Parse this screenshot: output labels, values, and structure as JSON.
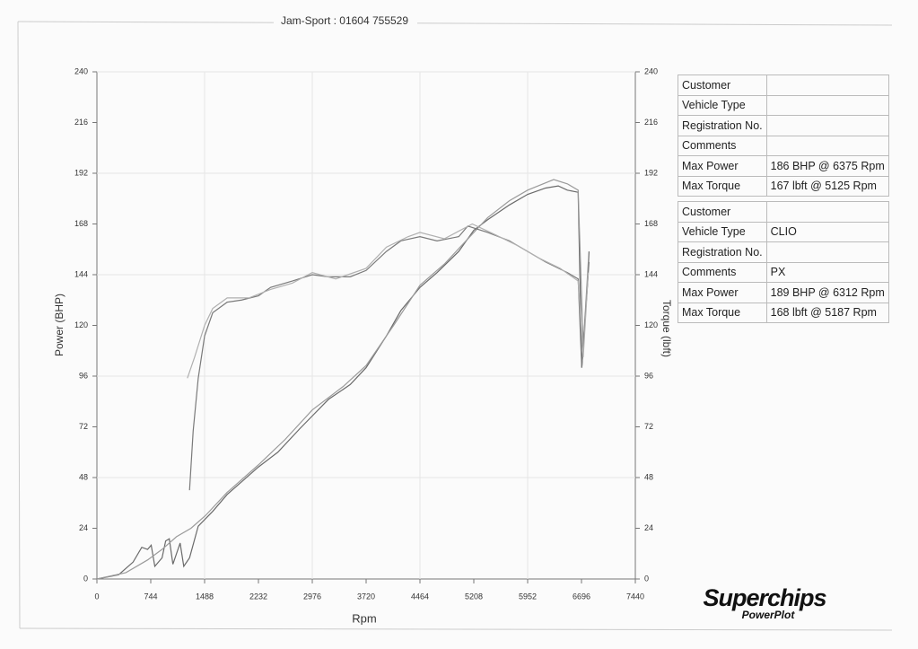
{
  "chart_data": {
    "type": "line",
    "title": "Jam-Sport : 01604 755529",
    "x_label": "Rpm",
    "y_label": "Power (BHP)",
    "y2_label": "Torque (lbft)",
    "xlim": [
      0,
      7440
    ],
    "xticks": [
      0,
      744,
      1488,
      2232,
      2976,
      3720,
      4464,
      5208,
      5952,
      6696,
      7440
    ],
    "ylim": [
      0,
      240
    ],
    "yticks": [
      0,
      24,
      48,
      72,
      96,
      120,
      144,
      168,
      192,
      216,
      240
    ],
    "y2lim": [
      0,
      240
    ],
    "y2ticks": [
      0,
      24,
      48,
      72,
      96,
      120,
      144,
      168,
      192,
      216,
      240
    ],
    "grid": true,
    "series": [
      {
        "color": "#6a6a6a",
        "x": [
          0,
          300,
          500,
          620,
          700,
          750,
          800,
          900,
          950,
          1000,
          1050,
          1150,
          1200,
          1280,
          1400,
          1600,
          1800,
          2000,
          2232,
          2500,
          2800,
          3000,
          3200,
          3500,
          3720,
          4000,
          4200,
          4464,
          4700,
          5000,
          5208,
          5400,
          5700,
          5952,
          6200,
          6375,
          6500,
          6650,
          6700,
          6780,
          6800
        ],
        "values": [
          0,
          2,
          8,
          15,
          14,
          16,
          6,
          10,
          18,
          19,
          7,
          17,
          6,
          10,
          25,
          32,
          40,
          46,
          53,
          60,
          71,
          78,
          85,
          92,
          100,
          115,
          127,
          138,
          145,
          155,
          165,
          170,
          177,
          182,
          185,
          186,
          184,
          183,
          100,
          140,
          155
        ]
      },
      {
        "color": "#9a9a9a",
        "x": [
          0,
          400,
          700,
          900,
          1100,
          1300,
          1500,
          1800,
          2232,
          2600,
          2976,
          3400,
          3720,
          4100,
          4464,
          4800,
          5100,
          5400,
          5700,
          5952,
          6312,
          6500,
          6650,
          6720,
          6790
        ],
        "values": [
          0,
          3,
          9,
          14,
          20,
          24,
          30,
          41,
          54,
          66,
          80,
          91,
          101,
          120,
          139,
          149,
          160,
          171,
          179,
          184,
          189,
          187,
          184,
          110,
          150
        ]
      },
      {
        "color": "#7a7a7a",
        "x": [
          1280,
          1330,
          1400,
          1488,
          1600,
          1800,
          2000,
          2232,
          2400,
          2700,
          2976,
          3200,
          3500,
          3720,
          4000,
          4200,
          4464,
          4700,
          5000,
          5125,
          5400,
          5700,
          5952,
          6200,
          6500,
          6650,
          6700,
          6780,
          6800
        ],
        "values": [
          42,
          70,
          95,
          115,
          126,
          131,
          132,
          134,
          138,
          141,
          144,
          143,
          143,
          146,
          155,
          160,
          162,
          160,
          162,
          167,
          164,
          160,
          155,
          150,
          145,
          142,
          100,
          140,
          150
        ]
      },
      {
        "color": "#b0b0b0",
        "x": [
          1250,
          1350,
          1488,
          1600,
          1800,
          2100,
          2400,
          2700,
          2976,
          3300,
          3720,
          4000,
          4300,
          4464,
          4800,
          5187,
          5500,
          5800,
          6100,
          6400,
          6650,
          6720,
          6790
        ],
        "values": [
          95,
          105,
          120,
          128,
          133,
          133,
          137,
          140,
          145,
          142,
          147,
          157,
          162,
          164,
          161,
          168,
          163,
          158,
          152,
          147,
          141,
          105,
          145
        ]
      }
    ]
  },
  "info_tables": [
    {
      "rows": [
        {
          "label": "Customer"
        },
        {
          "label": "Vehicle Type"
        },
        {
          "label": "Registration No."
        },
        {
          "label": "Comments"
        },
        {
          "label": "Max Power",
          "value": "186 BHP @ 6375 Rpm"
        },
        {
          "label": "Max Torque",
          "value": "167 lbft @ 5125 Rpm"
        }
      ]
    },
    {
      "rows": [
        {
          "label": "Customer"
        },
        {
          "label": "Vehicle Type",
          "value": "CLIO"
        },
        {
          "label": "Registration No."
        },
        {
          "label": "Comments",
          "value": "PX"
        },
        {
          "label": "Max Power",
          "value": "189 BHP @ 6312 Rpm"
        },
        {
          "label": "Max Torque",
          "value": "168 lbft @ 5187 Rpm"
        }
      ]
    }
  ],
  "logo": {
    "brand": "Superchips",
    "product": "PowerPlot"
  }
}
